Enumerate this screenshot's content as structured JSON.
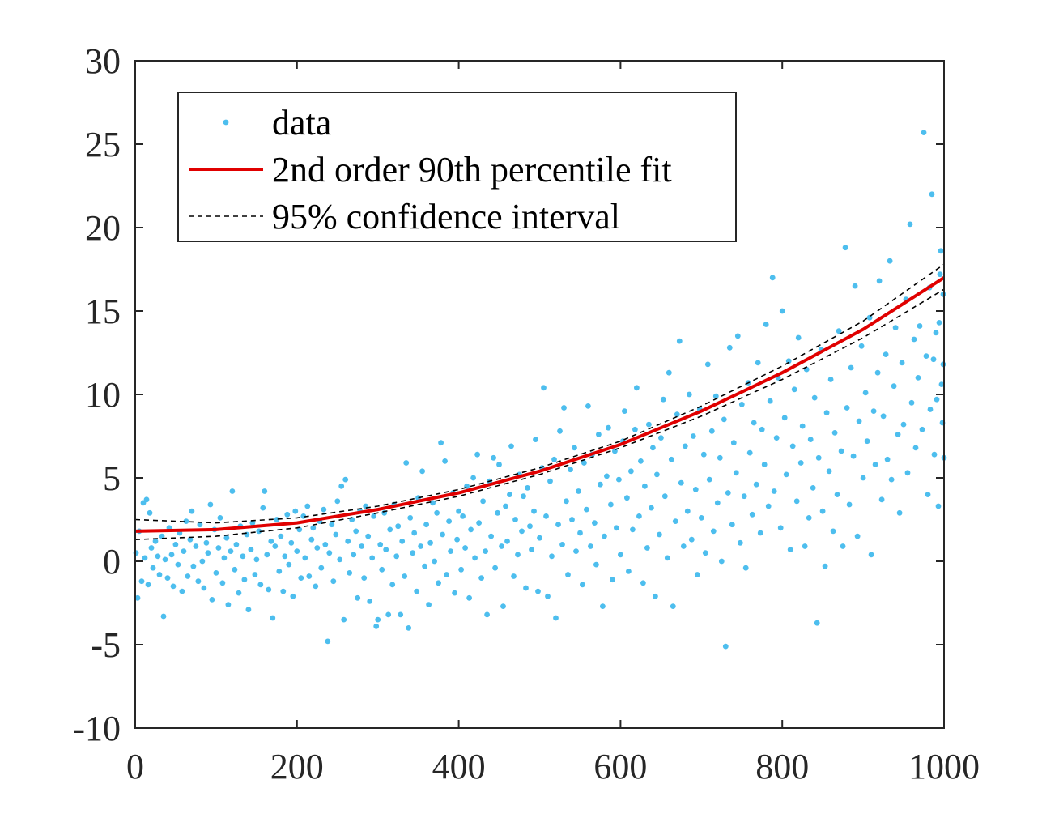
{
  "chart_data": {
    "type": "scatter",
    "xlim": [
      0,
      1000
    ],
    "ylim": [
      -10,
      30
    ],
    "x_ticks": [
      "0",
      "200",
      "400",
      "600",
      "800",
      "1000"
    ],
    "y_ticks": [
      "-10",
      "-5",
      "0",
      "5",
      "10",
      "15",
      "20",
      "25",
      "30"
    ],
    "grid": false,
    "legend": {
      "placement": "top-left",
      "entries": [
        {
          "label": "data",
          "marker": "dot"
        },
        {
          "label": "2nd order 90th percentile fit",
          "marker": "solid-line"
        },
        {
          "label": "95% confidence interval",
          "marker": "dashed-line"
        }
      ]
    },
    "colors": {
      "data": "#4DBEEE",
      "fit": "#E00000",
      "ci": "#000000",
      "axes": "#262626"
    },
    "fit": {
      "name": "2nd order 90th percentile fit",
      "x": [
        0,
        100,
        200,
        300,
        400,
        500,
        600,
        700,
        800,
        900,
        1000
      ],
      "y": [
        1.8,
        1.9,
        2.3,
        3.1,
        4.1,
        5.4,
        7.0,
        9.0,
        11.3,
        13.9,
        17.0
      ]
    },
    "ci_upper": {
      "name": "95% confidence interval",
      "x": [
        0,
        100,
        200,
        300,
        400,
        500,
        600,
        700,
        800,
        900,
        1000
      ],
      "y": [
        2.5,
        2.3,
        2.6,
        3.3,
        4.3,
        5.6,
        7.2,
        9.3,
        11.7,
        14.4,
        17.8
      ]
    },
    "ci_lower": {
      "name": "95% confidence interval",
      "x": [
        0,
        100,
        200,
        300,
        400,
        500,
        600,
        700,
        800,
        900,
        1000
      ],
      "y": [
        1.3,
        1.5,
        2.0,
        2.9,
        3.9,
        5.2,
        6.8,
        8.7,
        10.9,
        13.4,
        16.3
      ]
    },
    "points": [
      [
        1,
        0.5
      ],
      [
        3,
        -2.2
      ],
      [
        5,
        1.8
      ],
      [
        8,
        -1.2
      ],
      [
        10,
        3.5
      ],
      [
        12,
        0.2
      ],
      [
        14,
        3.7
      ],
      [
        16,
        -1.4
      ],
      [
        18,
        2.9
      ],
      [
        20,
        0.8
      ],
      [
        22,
        -0.4
      ],
      [
        25,
        1.2
      ],
      [
        28,
        0.3
      ],
      [
        30,
        -0.8
      ],
      [
        33,
        1.5
      ],
      [
        35,
        -3.3
      ],
      [
        37,
        0.1
      ],
      [
        40,
        -1.0
      ],
      [
        42,
        2.0
      ],
      [
        45,
        0.4
      ],
      [
        47,
        -1.5
      ],
      [
        50,
        1.0
      ],
      [
        53,
        -0.2
      ],
      [
        55,
        1.7
      ],
      [
        58,
        -1.8
      ],
      [
        60,
        0.6
      ],
      [
        63,
        2.4
      ],
      [
        65,
        -0.9
      ],
      [
        68,
        1.3
      ],
      [
        70,
        3.0
      ],
      [
        72,
        -0.3
      ],
      [
        75,
        0.9
      ],
      [
        78,
        -1.2
      ],
      [
        80,
        2.2
      ],
      [
        83,
        0.0
      ],
      [
        85,
        -1.6
      ],
      [
        88,
        1.1
      ],
      [
        90,
        0.5
      ],
      [
        93,
        3.4
      ],
      [
        95,
        -2.3
      ],
      [
        98,
        1.9
      ],
      [
        100,
        -0.7
      ],
      [
        103,
        0.8
      ],
      [
        105,
        2.6
      ],
      [
        108,
        -1.3
      ],
      [
        110,
        0.2
      ],
      [
        113,
        1.4
      ],
      [
        115,
        -2.6
      ],
      [
        118,
        0.6
      ],
      [
        120,
        4.2
      ],
      [
        123,
        -0.5
      ],
      [
        125,
        1.0
      ],
      [
        128,
        -1.9
      ],
      [
        130,
        2.1
      ],
      [
        133,
        0.3
      ],
      [
        135,
        -1.1
      ],
      [
        138,
        1.6
      ],
      [
        140,
        -2.9
      ],
      [
        143,
        0.7
      ],
      [
        145,
        2.3
      ],
      [
        148,
        -0.8
      ],
      [
        150,
        0.1
      ],
      [
        153,
        1.8
      ],
      [
        155,
        -1.4
      ],
      [
        158,
        3.2
      ],
      [
        160,
        4.2
      ],
      [
        163,
        0.4
      ],
      [
        165,
        -1.7
      ],
      [
        168,
        1.2
      ],
      [
        170,
        -3.4
      ],
      [
        173,
        0.9
      ],
      [
        175,
        2.5
      ],
      [
        178,
        -0.6
      ],
      [
        180,
        1.5
      ],
      [
        183,
        -1.8
      ],
      [
        185,
        0.3
      ],
      [
        188,
        2.8
      ],
      [
        190,
        -0.2
      ],
      [
        193,
        1.1
      ],
      [
        195,
        -2.1
      ],
      [
        198,
        3.0
      ],
      [
        200,
        0.6
      ],
      [
        203,
        1.9
      ],
      [
        205,
        -1.0
      ],
      [
        208,
        2.7
      ],
      [
        210,
        0.2
      ],
      [
        213,
        3.3
      ],
      [
        215,
        -0.9
      ],
      [
        218,
        1.3
      ],
      [
        220,
        2.0
      ],
      [
        223,
        -1.5
      ],
      [
        225,
        0.8
      ],
      [
        228,
        2.4
      ],
      [
        230,
        -0.4
      ],
      [
        233,
        3.1
      ],
      [
        235,
        1.0
      ],
      [
        238,
        -4.8
      ],
      [
        240,
        0.5
      ],
      [
        243,
        2.2
      ],
      [
        245,
        -1.2
      ],
      [
        248,
        1.6
      ],
      [
        250,
        3.6
      ],
      [
        253,
        0.1
      ],
      [
        255,
        4.5
      ],
      [
        258,
        -3.5
      ],
      [
        260,
        4.9
      ],
      [
        263,
        1.2
      ],
      [
        265,
        -0.7
      ],
      [
        268,
        2.5
      ],
      [
        270,
        0.4
      ],
      [
        273,
        1.8
      ],
      [
        275,
        -2.2
      ],
      [
        278,
        3.0
      ],
      [
        280,
        0.9
      ],
      [
        283,
        -1.0
      ],
      [
        285,
        3.3
      ],
      [
        288,
        1.5
      ],
      [
        290,
        -2.4
      ],
      [
        293,
        0.2
      ],
      [
        295,
        2.7
      ],
      [
        298,
        -3.9
      ],
      [
        300,
        -3.5
      ],
      [
        303,
        1.0
      ],
      [
        305,
        -0.5
      ],
      [
        308,
        2.9
      ],
      [
        310,
        0.7
      ],
      [
        313,
        -3.2
      ],
      [
        315,
        1.9
      ],
      [
        318,
        -1.4
      ],
      [
        320,
        3.4
      ],
      [
        323,
        0.3
      ],
      [
        325,
        2.1
      ],
      [
        328,
        -3.2
      ],
      [
        330,
        1.2
      ],
      [
        333,
        -0.9
      ],
      [
        335,
        5.9
      ],
      [
        338,
        -4.0
      ],
      [
        340,
        2.6
      ],
      [
        343,
        0.5
      ],
      [
        345,
        1.7
      ],
      [
        348,
        -1.8
      ],
      [
        350,
        3.8
      ],
      [
        353,
        0.9
      ],
      [
        355,
        5.4
      ],
      [
        358,
        -0.3
      ],
      [
        360,
        2.2
      ],
      [
        363,
        -2.6
      ],
      [
        365,
        1.1
      ],
      [
        368,
        3.5
      ],
      [
        370,
        0.0
      ],
      [
        373,
        2.9
      ],
      [
        375,
        -1.3
      ],
      [
        378,
        7.1
      ],
      [
        380,
        1.6
      ],
      [
        383,
        6.0
      ],
      [
        385,
        -0.8
      ],
      [
        388,
        2.4
      ],
      [
        390,
        0.6
      ],
      [
        393,
        4.1
      ],
      [
        395,
        -1.9
      ],
      [
        398,
        1.3
      ],
      [
        400,
        3.0
      ],
      [
        403,
        -0.5
      ],
      [
        405,
        2.7
      ],
      [
        408,
        0.8
      ],
      [
        410,
        4.5
      ],
      [
        413,
        -2.2
      ],
      [
        415,
        1.9
      ],
      [
        418,
        5.0
      ],
      [
        420,
        0.2
      ],
      [
        423,
        6.4
      ],
      [
        425,
        2.3
      ],
      [
        428,
        -1.0
      ],
      [
        430,
        3.6
      ],
      [
        433,
        0.6
      ],
      [
        435,
        -3.2
      ],
      [
        438,
        4.8
      ],
      [
        440,
        1.5
      ],
      [
        443,
        6.2
      ],
      [
        445,
        -0.4
      ],
      [
        448,
        2.9
      ],
      [
        450,
        5.8
      ],
      [
        453,
        0.9
      ],
      [
        455,
        -2.7
      ],
      [
        458,
        3.3
      ],
      [
        460,
        1.2
      ],
      [
        463,
        4.0
      ],
      [
        465,
        6.9
      ],
      [
        468,
        -0.9
      ],
      [
        470,
        2.5
      ],
      [
        473,
        0.4
      ],
      [
        475,
        5.2
      ],
      [
        478,
        1.8
      ],
      [
        480,
        3.9
      ],
      [
        483,
        -1.6
      ],
      [
        485,
        4.4
      ],
      [
        488,
        2.1
      ],
      [
        490,
        0.7
      ],
      [
        493,
        3.0
      ],
      [
        495,
        7.3
      ],
      [
        498,
        -1.8
      ],
      [
        500,
        1.4
      ],
      [
        503,
        5.6
      ],
      [
        505,
        10.4
      ],
      [
        508,
        2.7
      ],
      [
        510,
        -2.1
      ],
      [
        513,
        4.8
      ],
      [
        515,
        0.3
      ],
      [
        518,
        6.1
      ],
      [
        520,
        -3.4
      ],
      [
        523,
        2.2
      ],
      [
        525,
        7.8
      ],
      [
        528,
        1.0
      ],
      [
        530,
        9.2
      ],
      [
        533,
        3.6
      ],
      [
        535,
        -0.8
      ],
      [
        538,
        5.5
      ],
      [
        540,
        2.5
      ],
      [
        543,
        6.8
      ],
      [
        545,
        0.6
      ],
      [
        548,
        4.2
      ],
      [
        550,
        1.7
      ],
      [
        553,
        -1.4
      ],
      [
        555,
        5.9
      ],
      [
        558,
        3.1
      ],
      [
        560,
        9.3
      ],
      [
        563,
        0.9
      ],
      [
        565,
        6.4
      ],
      [
        568,
        2.3
      ],
      [
        570,
        -0.2
      ],
      [
        573,
        7.6
      ],
      [
        575,
        4.6
      ],
      [
        578,
        -2.7
      ],
      [
        580,
        1.5
      ],
      [
        583,
        5.1
      ],
      [
        585,
        8.0
      ],
      [
        588,
        3.4
      ],
      [
        590,
        -1.1
      ],
      [
        593,
        6.6
      ],
      [
        595,
        2.0
      ],
      [
        598,
        4.9
      ],
      [
        600,
        0.4
      ],
      [
        603,
        7.2
      ],
      [
        605,
        9.0
      ],
      [
        608,
        3.8
      ],
      [
        610,
        -0.6
      ],
      [
        613,
        5.4
      ],
      [
        615,
        1.9
      ],
      [
        618,
        7.9
      ],
      [
        620,
        10.4
      ],
      [
        623,
        2.7
      ],
      [
        625,
        6.0
      ],
      [
        628,
        -1.3
      ],
      [
        630,
        4.5
      ],
      [
        633,
        0.8
      ],
      [
        635,
        8.2
      ],
      [
        638,
        3.2
      ],
      [
        640,
        6.8
      ],
      [
        643,
        -2.1
      ],
      [
        645,
        5.2
      ],
      [
        648,
        1.6
      ],
      [
        650,
        7.4
      ],
      [
        653,
        9.7
      ],
      [
        655,
        3.9
      ],
      [
        658,
        0.2
      ],
      [
        660,
        11.3
      ],
      [
        663,
        6.1
      ],
      [
        665,
        -2.7
      ],
      [
        668,
        2.4
      ],
      [
        670,
        8.8
      ],
      [
        673,
        13.2
      ],
      [
        675,
        4.7
      ],
      [
        678,
        0.9
      ],
      [
        680,
        6.9
      ],
      [
        683,
        3.0
      ],
      [
        685,
        10.0
      ],
      [
        688,
        1.3
      ],
      [
        690,
        7.5
      ],
      [
        693,
        4.3
      ],
      [
        695,
        -0.8
      ],
      [
        698,
        9.1
      ],
      [
        700,
        2.6
      ],
      [
        703,
        6.4
      ],
      [
        705,
        0.5
      ],
      [
        708,
        11.8
      ],
      [
        710,
        4.9
      ],
      [
        713,
        7.8
      ],
      [
        715,
        1.8
      ],
      [
        718,
        9.9
      ],
      [
        720,
        3.5
      ],
      [
        723,
        6.2
      ],
      [
        725,
        0.0
      ],
      [
        728,
        8.5
      ],
      [
        730,
        -5.1
      ],
      [
        733,
        4.1
      ],
      [
        735,
        12.8
      ],
      [
        738,
        2.2
      ],
      [
        740,
        7.1
      ],
      [
        743,
        5.3
      ],
      [
        745,
        13.5
      ],
      [
        748,
        1.1
      ],
      [
        750,
        9.4
      ],
      [
        753,
        3.9
      ],
      [
        755,
        -0.4
      ],
      [
        758,
        10.7
      ],
      [
        760,
        6.5
      ],
      [
        763,
        2.8
      ],
      [
        765,
        8.3
      ],
      [
        768,
        4.6
      ],
      [
        770,
        11.9
      ],
      [
        773,
        1.7
      ],
      [
        775,
        7.9
      ],
      [
        778,
        5.8
      ],
      [
        780,
        14.2
      ],
      [
        783,
        3.3
      ],
      [
        785,
        9.6
      ],
      [
        788,
        17.0
      ],
      [
        790,
        4.2
      ],
      [
        793,
        7.4
      ],
      [
        795,
        11.0
      ],
      [
        798,
        2.0
      ],
      [
        800,
        15.0
      ],
      [
        803,
        8.6
      ],
      [
        805,
        5.2
      ],
      [
        808,
        12.0
      ],
      [
        810,
        0.7
      ],
      [
        813,
        6.9
      ],
      [
        815,
        10.3
      ],
      [
        818,
        3.6
      ],
      [
        820,
        13.4
      ],
      [
        823,
        5.9
      ],
      [
        825,
        8.1
      ],
      [
        828,
        0.9
      ],
      [
        830,
        11.5
      ],
      [
        833,
        2.6
      ],
      [
        835,
        7.3
      ],
      [
        838,
        4.4
      ],
      [
        840,
        9.8
      ],
      [
        843,
        -3.7
      ],
      [
        845,
        6.2
      ],
      [
        848,
        12.7
      ],
      [
        850,
        3.0
      ],
      [
        853,
        -0.3
      ],
      [
        855,
        8.9
      ],
      [
        858,
        5.4
      ],
      [
        860,
        10.9
      ],
      [
        863,
        1.8
      ],
      [
        865,
        7.7
      ],
      [
        868,
        4.0
      ],
      [
        870,
        13.8
      ],
      [
        873,
        6.6
      ],
      [
        875,
        0.9
      ],
      [
        878,
        18.8
      ],
      [
        880,
        9.2
      ],
      [
        883,
        3.4
      ],
      [
        885,
        11.6
      ],
      [
        888,
        6.3
      ],
      [
        890,
        16.5
      ],
      [
        893,
        1.5
      ],
      [
        895,
        8.4
      ],
      [
        898,
        12.9
      ],
      [
        900,
        5.0
      ],
      [
        903,
        10.1
      ],
      [
        905,
        7.2
      ],
      [
        908,
        14.6
      ],
      [
        910,
        0.4
      ],
      [
        913,
        9.0
      ],
      [
        915,
        5.8
      ],
      [
        918,
        11.3
      ],
      [
        920,
        16.8
      ],
      [
        923,
        3.7
      ],
      [
        925,
        8.7
      ],
      [
        928,
        12.4
      ],
      [
        930,
        6.1
      ],
      [
        933,
        18.0
      ],
      [
        935,
        4.9
      ],
      [
        938,
        10.5
      ],
      [
        940,
        14.0
      ],
      [
        943,
        7.6
      ],
      [
        945,
        2.9
      ],
      [
        948,
        11.9
      ],
      [
        950,
        8.2
      ],
      [
        953,
        15.7
      ],
      [
        955,
        5.3
      ],
      [
        958,
        20.2
      ],
      [
        960,
        9.5
      ],
      [
        963,
        13.3
      ],
      [
        965,
        6.8
      ],
      [
        968,
        11.0
      ],
      [
        970,
        14.1
      ],
      [
        973,
        7.9
      ],
      [
        975,
        25.7
      ],
      [
        978,
        12.3
      ],
      [
        980,
        4.0
      ],
      [
        983,
        9.1
      ],
      [
        985,
        22.0
      ],
      [
        988,
        6.4
      ],
      [
        990,
        13.7
      ],
      [
        993,
        3.3
      ],
      [
        995,
        17.2
      ],
      [
        997,
        10.6
      ],
      [
        998,
        8.3
      ],
      [
        999,
        16.0
      ],
      [
        1000,
        6.2
      ],
      [
        999,
        11.8
      ],
      [
        996,
        18.6
      ],
      [
        994,
        14.3
      ],
      [
        991,
        9.7
      ],
      [
        987,
        12.1
      ],
      [
        982,
        16.4
      ]
    ]
  }
}
